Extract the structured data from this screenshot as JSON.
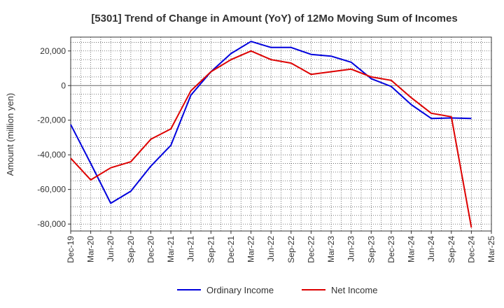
{
  "chart_data": {
    "type": "line",
    "title": "[5301]  Trend of Change in Amount (YoY) of 12Mo Moving Sum of Incomes",
    "xlabel": "",
    "ylabel": "Amount (million yen)",
    "ylim": [
      -84000,
      28000
    ],
    "yticks": [
      20000,
      0,
      -20000,
      -40000,
      -60000,
      -80000
    ],
    "ytick_labels": [
      "20,000",
      "0",
      "-20,000",
      "-40,000",
      "-60,000",
      "-80,000"
    ],
    "categories": [
      "Dec-19",
      "Mar-20",
      "Jun-20",
      "Sep-20",
      "Dec-20",
      "Mar-21",
      "Jun-21",
      "Sep-21",
      "Dec-21",
      "Mar-22",
      "Jun-22",
      "Sep-22",
      "Dec-22",
      "Mar-23",
      "Jun-23",
      "Sep-23",
      "Dec-23",
      "Mar-24",
      "Jun-24",
      "Sep-24",
      "Dec-24",
      "Mar-25"
    ],
    "series": [
      {
        "name": "Ordinary Income",
        "color": "#0000dd",
        "values": [
          -22500,
          -45000,
          -68000,
          -61000,
          -46500,
          -34500,
          -5500,
          8000,
          18500,
          25500,
          22000,
          22000,
          18000,
          17000,
          13500,
          4000,
          -500,
          -11000,
          -19000,
          -18700,
          -19000,
          null
        ]
      },
      {
        "name": "Net Income",
        "color": "#dd0000",
        "values": [
          -42000,
          -54500,
          -47500,
          -44000,
          -31000,
          -25000,
          -3000,
          8000,
          15000,
          20000,
          15000,
          13000,
          6500,
          8000,
          9500,
          5000,
          3000,
          -7000,
          -16000,
          -18000,
          -82000,
          null
        ]
      }
    ],
    "legend": [
      "Ordinary Income",
      "Net Income"
    ],
    "legend_position": "bottom-center",
    "grid": true
  }
}
